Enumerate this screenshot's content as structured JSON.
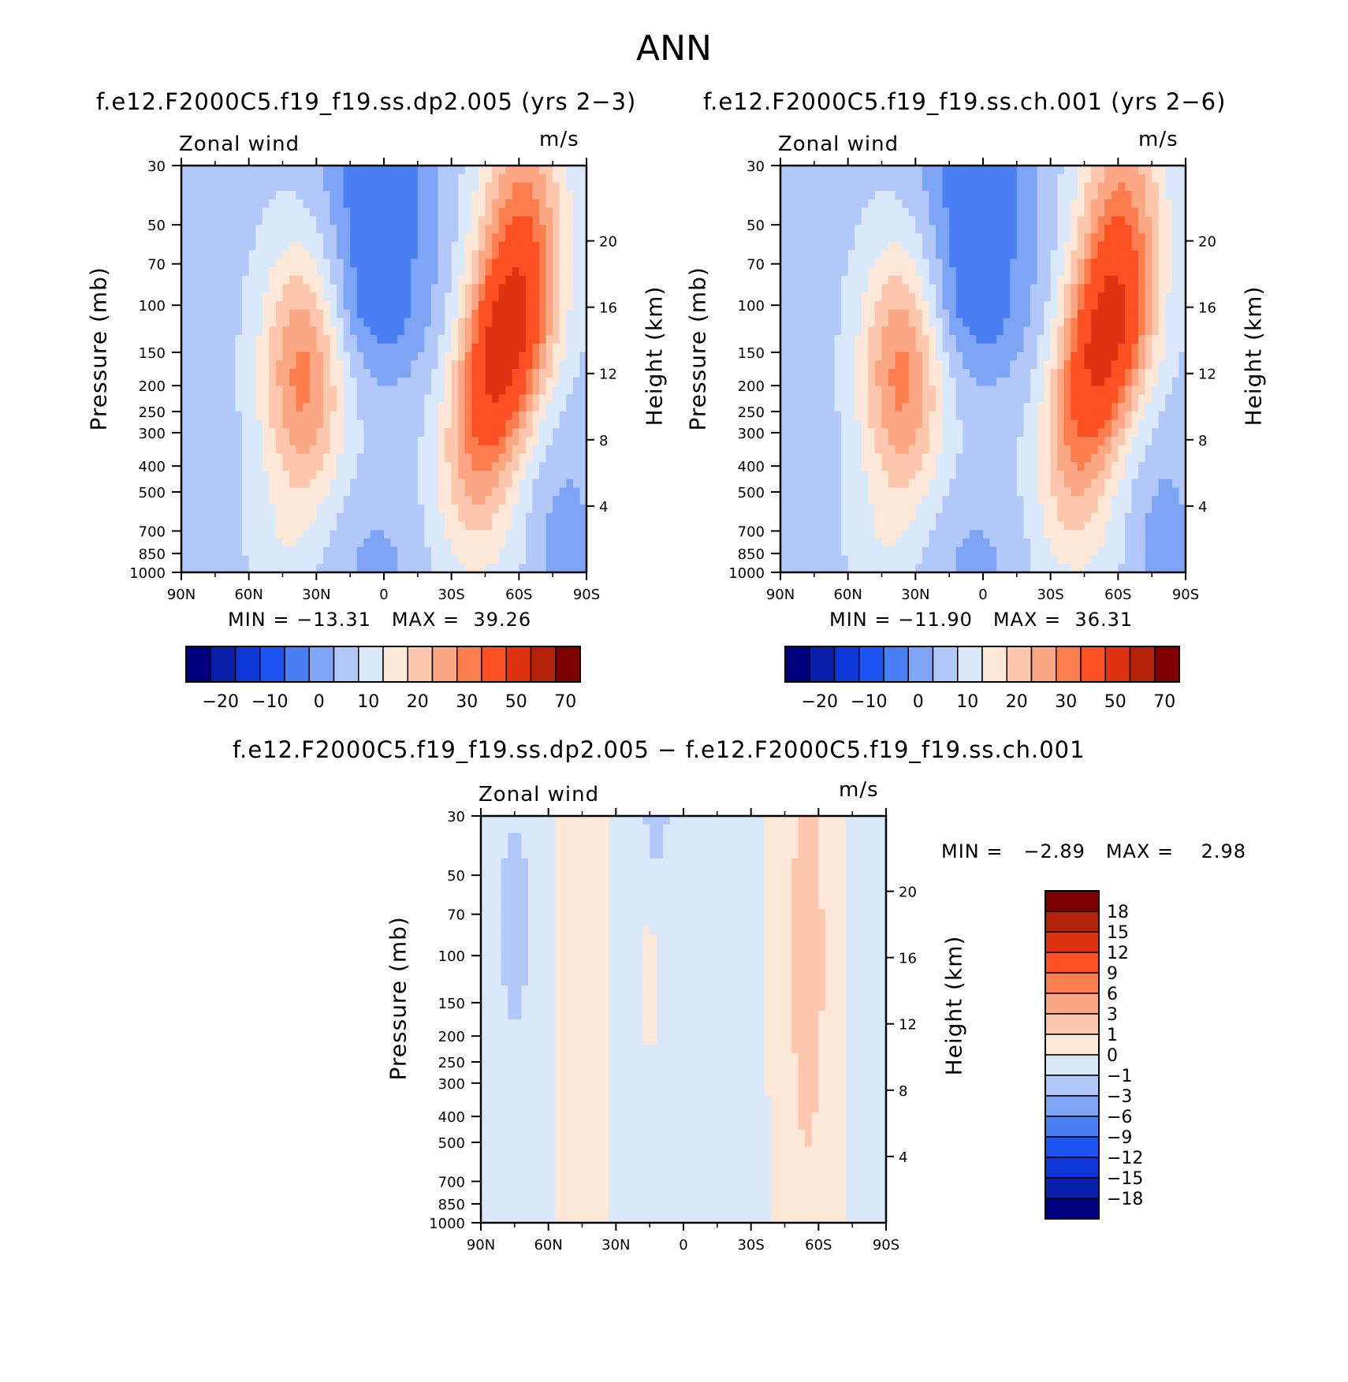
{
  "figure_title": "ANN",
  "panels": [
    {
      "title": "f.e12.F2000C5.f19_f19.ss.dp2.005 (yrs 2−3)",
      "variable": "Zonal wind",
      "units": "m/s",
      "ylabel_left": "Pressure (mb)",
      "ylabel_right": "Height (km)",
      "min_label": "MIN =",
      "min_value": "−13.31",
      "max_label": "MAX =",
      "max_value": "39.26"
    },
    {
      "title": "f.e12.F2000C5.f19_f19.ss.ch.001 (yrs 2−6)",
      "variable": "Zonal wind",
      "units": "m/s",
      "ylabel_left": "Pressure (mb)",
      "ylabel_right": "Height (km)",
      "min_label": "MIN =",
      "min_value": "−11.90",
      "max_label": "MAX =",
      "max_value": "36.31"
    },
    {
      "title": "f.e12.F2000C5.f19_f19.ss.dp2.005 − f.e12.F2000C5.f19_f19.ss.ch.001",
      "variable": "Zonal wind",
      "units": "m/s",
      "ylabel_left": "Pressure (mb)",
      "ylabel_right": "Height (km)",
      "min_label": "MIN =",
      "min_value": "−2.89",
      "max_label": "MAX =",
      "max_value": "2.98"
    }
  ],
  "chart_data": [
    {
      "type": "heatmap",
      "title": "f.e12.F2000C5.f19_f19.ss.dp2.005 (yrs 2−3)",
      "xlabel": "",
      "ylabel": "Pressure (mb)",
      "ylabel_right": "Height (km)",
      "x_ticks": [
        "90N",
        "60N",
        "30N",
        "0",
        "30S",
        "60S",
        "90S"
      ],
      "x_values": [
        90,
        60,
        30,
        0,
        -30,
        -60,
        -90
      ],
      "y_ticks": [
        "30",
        "50",
        "70",
        "100",
        "150",
        "200",
        "250",
        "300",
        "400",
        "500",
        "700",
        "850",
        "1000"
      ],
      "y_log": true,
      "ylim": [
        1000,
        30
      ],
      "y_right_ticks": [
        "20",
        "16",
        "12",
        "8",
        "4"
      ],
      "colorbar_labels": [
        "−20",
        "−10",
        "0",
        "10",
        "20",
        "30",
        "50",
        "70"
      ],
      "min": -13.31,
      "max": 39.26,
      "features": [
        {
          "type": "jet_max",
          "lat": -50,
          "p": 200,
          "approx_value": 35
        },
        {
          "type": "jet_max",
          "lat": 35,
          "p": 200,
          "approx_value": 25
        },
        {
          "type": "easterly_min",
          "lat": 5,
          "p": 30,
          "approx_value": -13
        }
      ]
    },
    {
      "type": "heatmap",
      "title": "f.e12.F2000C5.f19_f19.ss.ch.001 (yrs 2−6)",
      "xlabel": "",
      "ylabel": "Pressure (mb)",
      "ylabel_right": "Height (km)",
      "x_ticks": [
        "90N",
        "60N",
        "30N",
        "0",
        "30S",
        "60S",
        "90S"
      ],
      "x_values": [
        90,
        60,
        30,
        0,
        -30,
        -60,
        -90
      ],
      "y_ticks": [
        "30",
        "50",
        "70",
        "100",
        "150",
        "200",
        "250",
        "300",
        "400",
        "500",
        "700",
        "850",
        "1000"
      ],
      "y_log": true,
      "ylim": [
        1000,
        30
      ],
      "y_right_ticks": [
        "20",
        "16",
        "12",
        "8",
        "4"
      ],
      "colorbar_labels": [
        "−20",
        "−10",
        "0",
        "10",
        "20",
        "30",
        "50",
        "70"
      ],
      "min": -11.9,
      "max": 36.31,
      "features": [
        {
          "type": "jet_max",
          "lat": -50,
          "p": 200,
          "approx_value": 33
        },
        {
          "type": "jet_max",
          "lat": 35,
          "p": 200,
          "approx_value": 25
        },
        {
          "type": "easterly_min",
          "lat": 5,
          "p": 30,
          "approx_value": -12
        }
      ]
    },
    {
      "type": "heatmap",
      "title": "f.e12.F2000C5.f19_f19.ss.dp2.005 − f.e12.F2000C5.f19_f19.ss.ch.001",
      "xlabel": "",
      "ylabel": "Pressure (mb)",
      "ylabel_right": "Height (km)",
      "x_ticks": [
        "90N",
        "60N",
        "30N",
        "0",
        "30S",
        "60S",
        "90S"
      ],
      "x_values": [
        90,
        60,
        30,
        0,
        -30,
        -60,
        -90
      ],
      "y_ticks": [
        "30",
        "50",
        "70",
        "100",
        "150",
        "200",
        "250",
        "300",
        "400",
        "500",
        "700",
        "850",
        "1000"
      ],
      "y_log": true,
      "ylim": [
        1000,
        30
      ],
      "y_right_ticks": [
        "20",
        "16",
        "12",
        "8",
        "4"
      ],
      "colorbar_labels": [
        "18",
        "15",
        "12",
        "9",
        "6",
        "3",
        "1",
        "0",
        "−1",
        "−3",
        "−6",
        "−9",
        "−12",
        "−15",
        "−18"
      ],
      "min": -2.89,
      "max": 2.98
    }
  ],
  "colors": {
    "main_scale": [
      "#00007f",
      "#0a1faa",
      "#0c37d6",
      "#1d55f5",
      "#4a7ef3",
      "#7ea4f5",
      "#b1c8f8",
      "#d9e8fb",
      "#fde7d7",
      "#fcc7ac",
      "#fba784",
      "#fc7d4d",
      "#fc4f22",
      "#df3210",
      "#b4220a",
      "#7f0000"
    ],
    "diff_scale_top_to_bottom": [
      "#7f0000",
      "#b4220a",
      "#df3210",
      "#fc4f22",
      "#fc7d4d",
      "#fba784",
      "#fcc7ac",
      "#fde7d7",
      "#d9e8fb",
      "#b1c8f8",
      "#7ea4f5",
      "#4a7ef3",
      "#1d55f5",
      "#0c37d6",
      "#0a1faa",
      "#00007f"
    ]
  }
}
